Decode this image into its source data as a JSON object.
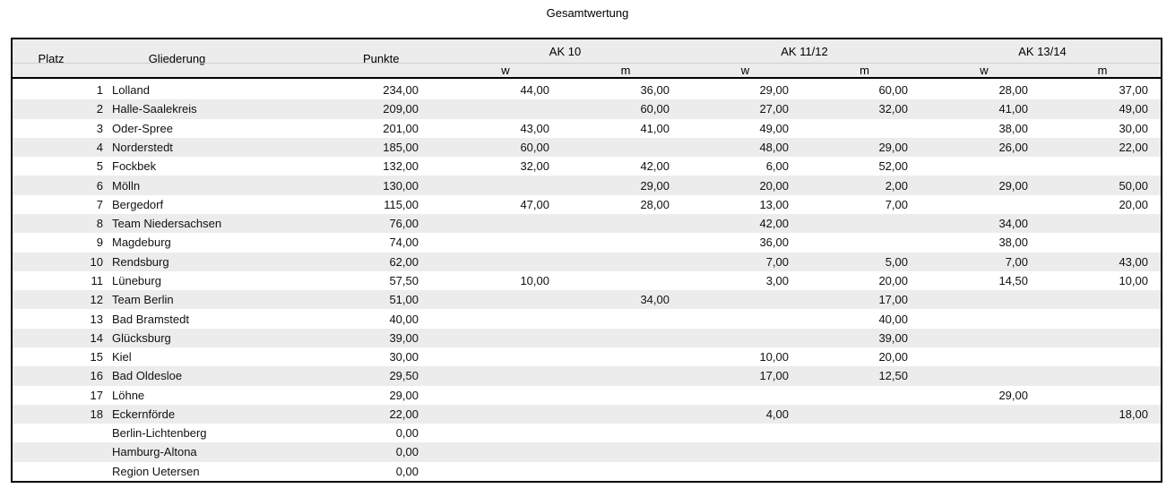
{
  "title": "Gesamtwertung",
  "colors": {
    "border": "#000000",
    "header_bg": "#ececec",
    "row_stripe": "#ececec",
    "header_divider": "#d0d0d0",
    "text": "#000000"
  },
  "table": {
    "headers": {
      "platz": "Platz",
      "gliederung": "Gliederung",
      "punkte": "Punkte",
      "groups": [
        {
          "label": "AK 10"
        },
        {
          "label": "AK 11/12"
        },
        {
          "label": "AK 13/14"
        }
      ],
      "sub_w": "w",
      "sub_m": "m"
    },
    "rows": [
      {
        "platz": "1",
        "gliederung": "Lolland",
        "punkte": "234,00",
        "ak10_w": "44,00",
        "ak10_m": "36,00",
        "ak1112_w": "29,00",
        "ak1112_m": "60,00",
        "ak1314_w": "28,00",
        "ak1314_m": "37,00"
      },
      {
        "platz": "2",
        "gliederung": "Halle-Saalekreis",
        "punkte": "209,00",
        "ak10_w": "",
        "ak10_m": "60,00",
        "ak1112_w": "27,00",
        "ak1112_m": "32,00",
        "ak1314_w": "41,00",
        "ak1314_m": "49,00"
      },
      {
        "platz": "3",
        "gliederung": "Oder-Spree",
        "punkte": "201,00",
        "ak10_w": "43,00",
        "ak10_m": "41,00",
        "ak1112_w": "49,00",
        "ak1112_m": "",
        "ak1314_w": "38,00",
        "ak1314_m": "30,00"
      },
      {
        "platz": "4",
        "gliederung": "Norderstedt",
        "punkte": "185,00",
        "ak10_w": "60,00",
        "ak10_m": "",
        "ak1112_w": "48,00",
        "ak1112_m": "29,00",
        "ak1314_w": "26,00",
        "ak1314_m": "22,00"
      },
      {
        "platz": "5",
        "gliederung": "Fockbek",
        "punkte": "132,00",
        "ak10_w": "32,00",
        "ak10_m": "42,00",
        "ak1112_w": "6,00",
        "ak1112_m": "52,00",
        "ak1314_w": "",
        "ak1314_m": ""
      },
      {
        "platz": "6",
        "gliederung": "Mölln",
        "punkte": "130,00",
        "ak10_w": "",
        "ak10_m": "29,00",
        "ak1112_w": "20,00",
        "ak1112_m": "2,00",
        "ak1314_w": "29,00",
        "ak1314_m": "50,00"
      },
      {
        "platz": "7",
        "gliederung": "Bergedorf",
        "punkte": "115,00",
        "ak10_w": "47,00",
        "ak10_m": "28,00",
        "ak1112_w": "13,00",
        "ak1112_m": "7,00",
        "ak1314_w": "",
        "ak1314_m": "20,00"
      },
      {
        "platz": "8",
        "gliederung": "Team Niedersachsen",
        "punkte": "76,00",
        "ak10_w": "",
        "ak10_m": "",
        "ak1112_w": "42,00",
        "ak1112_m": "",
        "ak1314_w": "34,00",
        "ak1314_m": ""
      },
      {
        "platz": "9",
        "gliederung": "Magdeburg",
        "punkte": "74,00",
        "ak10_w": "",
        "ak10_m": "",
        "ak1112_w": "36,00",
        "ak1112_m": "",
        "ak1314_w": "38,00",
        "ak1314_m": ""
      },
      {
        "platz": "10",
        "gliederung": "Rendsburg",
        "punkte": "62,00",
        "ak10_w": "",
        "ak10_m": "",
        "ak1112_w": "7,00",
        "ak1112_m": "5,00",
        "ak1314_w": "7,00",
        "ak1314_m": "43,00"
      },
      {
        "platz": "11",
        "gliederung": "Lüneburg",
        "punkte": "57,50",
        "ak10_w": "10,00",
        "ak10_m": "",
        "ak1112_w": "3,00",
        "ak1112_m": "20,00",
        "ak1314_w": "14,50",
        "ak1314_m": "10,00"
      },
      {
        "platz": "12",
        "gliederung": "Team Berlin",
        "punkte": "51,00",
        "ak10_w": "",
        "ak10_m": "34,00",
        "ak1112_w": "",
        "ak1112_m": "17,00",
        "ak1314_w": "",
        "ak1314_m": ""
      },
      {
        "platz": "13",
        "gliederung": "Bad Bramstedt",
        "punkte": "40,00",
        "ak10_w": "",
        "ak10_m": "",
        "ak1112_w": "",
        "ak1112_m": "40,00",
        "ak1314_w": "",
        "ak1314_m": ""
      },
      {
        "platz": "14",
        "gliederung": "Glücksburg",
        "punkte": "39,00",
        "ak10_w": "",
        "ak10_m": "",
        "ak1112_w": "",
        "ak1112_m": "39,00",
        "ak1314_w": "",
        "ak1314_m": ""
      },
      {
        "platz": "15",
        "gliederung": "Kiel",
        "punkte": "30,00",
        "ak10_w": "",
        "ak10_m": "",
        "ak1112_w": "10,00",
        "ak1112_m": "20,00",
        "ak1314_w": "",
        "ak1314_m": ""
      },
      {
        "platz": "16",
        "gliederung": "Bad Oldesloe",
        "punkte": "29,50",
        "ak10_w": "",
        "ak10_m": "",
        "ak1112_w": "17,00",
        "ak1112_m": "12,50",
        "ak1314_w": "",
        "ak1314_m": ""
      },
      {
        "platz": "17",
        "gliederung": "Löhne",
        "punkte": "29,00",
        "ak10_w": "",
        "ak10_m": "",
        "ak1112_w": "",
        "ak1112_m": "",
        "ak1314_w": "29,00",
        "ak1314_m": ""
      },
      {
        "platz": "18",
        "gliederung": "Eckernförde",
        "punkte": "22,00",
        "ak10_w": "",
        "ak10_m": "",
        "ak1112_w": "4,00",
        "ak1112_m": "",
        "ak1314_w": "",
        "ak1314_m": "18,00"
      },
      {
        "platz": "",
        "gliederung": "Berlin-Lichtenberg",
        "punkte": "0,00",
        "ak10_w": "",
        "ak10_m": "",
        "ak1112_w": "",
        "ak1112_m": "",
        "ak1314_w": "",
        "ak1314_m": ""
      },
      {
        "platz": "",
        "gliederung": "Hamburg-Altona",
        "punkte": "0,00",
        "ak10_w": "",
        "ak10_m": "",
        "ak1112_w": "",
        "ak1112_m": "",
        "ak1314_w": "",
        "ak1314_m": ""
      },
      {
        "platz": "",
        "gliederung": "Region Uetersen",
        "punkte": "0,00",
        "ak10_w": "",
        "ak10_m": "",
        "ak1112_w": "",
        "ak1112_m": "",
        "ak1314_w": "",
        "ak1314_m": ""
      }
    ]
  }
}
